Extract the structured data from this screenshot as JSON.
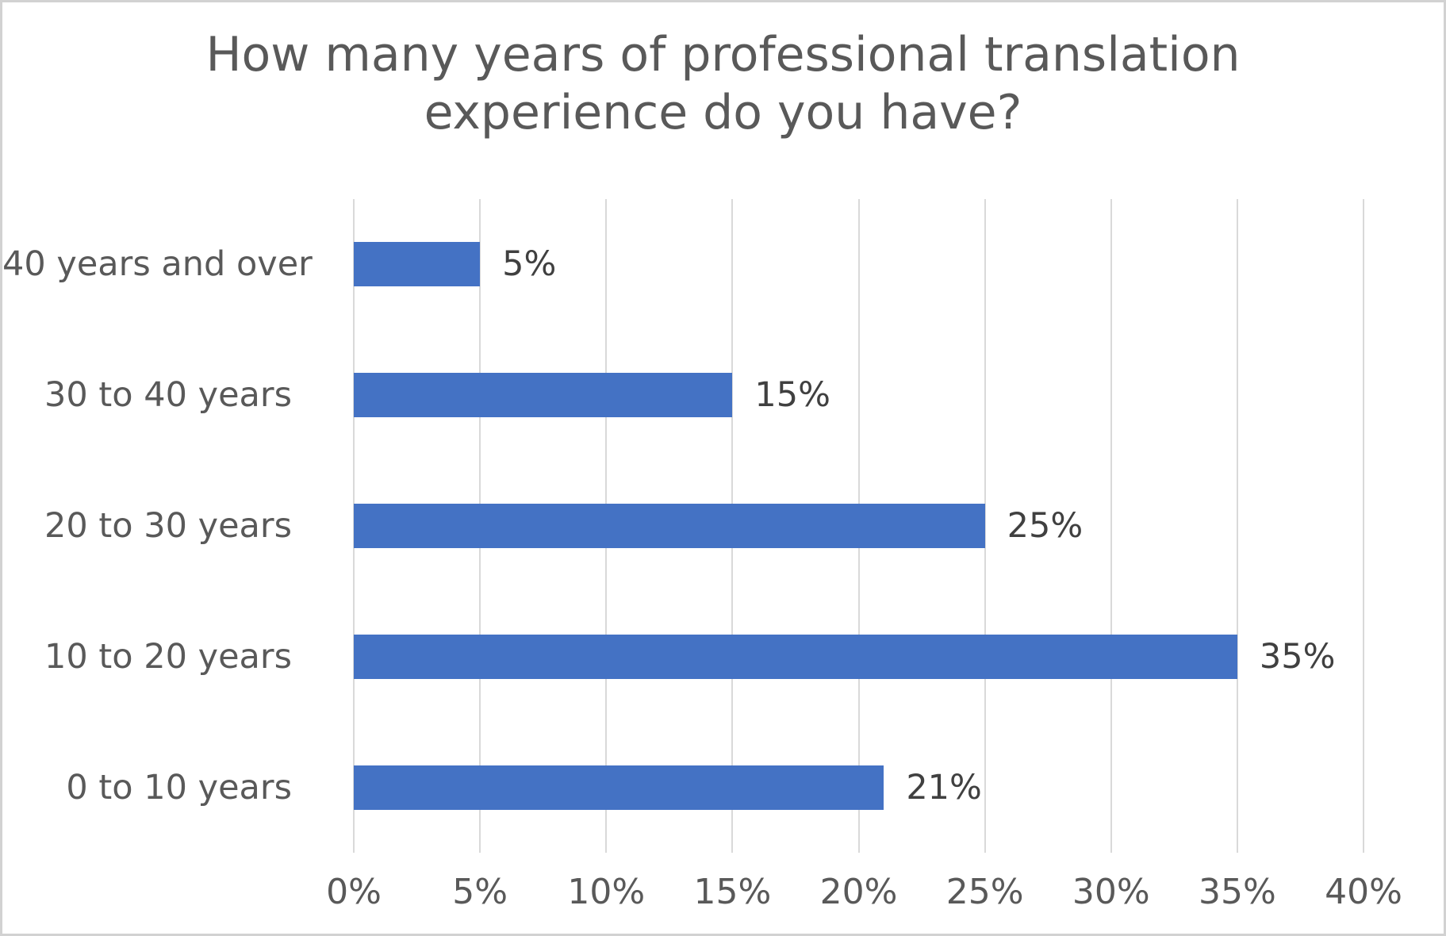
{
  "chart": {
    "colors": {
      "bar": "#4472C4",
      "title_text": "#595959",
      "axis_text": "#595959",
      "data_label_text": "#404040",
      "gridline": "#D9D9D9",
      "border": "#D2D2D2",
      "background": "#FFFFFF"
    }
  },
  "chart_data": {
    "type": "bar",
    "orientation": "horizontal",
    "title": "How many years of professional translation experience do you have?",
    "categories": [
      "40 years and over",
      "30 to 40 years",
      "20 to 30 years",
      "10 to 20 years",
      "0 to 10 years"
    ],
    "values": [
      5,
      15,
      25,
      35,
      21
    ],
    "data_labels": [
      "5%",
      "15%",
      "25%",
      "35%",
      "21%"
    ],
    "x_axis_ticks": [
      "0%",
      "5%",
      "10%",
      "15%",
      "20%",
      "25%",
      "30%",
      "35%",
      "40%"
    ],
    "xlabel": "",
    "ylabel": "",
    "xlim": [
      0,
      40
    ],
    "grid": true,
    "legend": false
  }
}
